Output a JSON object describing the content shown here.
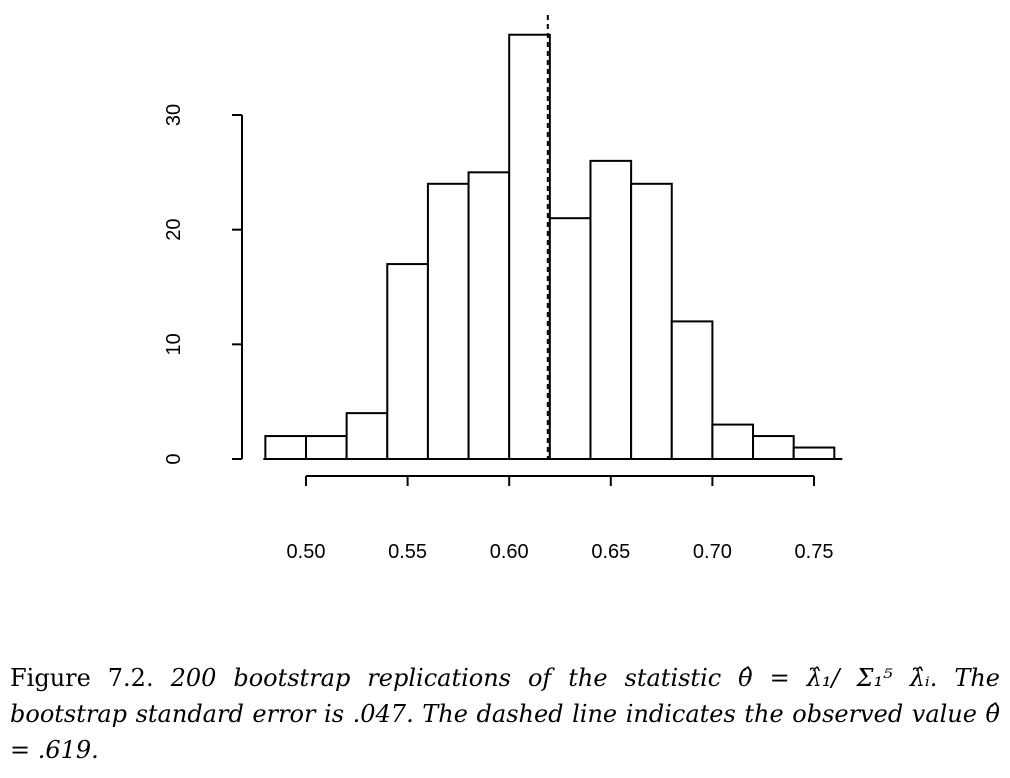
{
  "chart_data": {
    "type": "bar",
    "subtype": "histogram",
    "bins": [
      [
        0.48,
        0.5
      ],
      [
        0.5,
        0.52
      ],
      [
        0.52,
        0.54
      ],
      [
        0.54,
        0.56
      ],
      [
        0.56,
        0.58
      ],
      [
        0.58,
        0.6
      ],
      [
        0.6,
        0.62
      ],
      [
        0.62,
        0.64
      ],
      [
        0.64,
        0.66
      ],
      [
        0.66,
        0.68
      ],
      [
        0.68,
        0.7
      ],
      [
        0.7,
        0.72
      ],
      [
        0.72,
        0.74
      ],
      [
        0.74,
        0.76
      ]
    ],
    "values": [
      2,
      2,
      4,
      17,
      24,
      25,
      37,
      21,
      26,
      24,
      12,
      3,
      2,
      1
    ],
    "xlim": [
      0.48,
      0.76
    ],
    "ylim": [
      0,
      30
    ],
    "xticks": [
      "0.50",
      "0.55",
      "0.60",
      "0.65",
      "0.70",
      "0.75"
    ],
    "yticks": [
      "0",
      "10",
      "20",
      "30"
    ],
    "reference_line": 0.619,
    "reference_style": "dashed",
    "title": "",
    "xlabel": "",
    "ylabel": "",
    "grid": false,
    "bar_fill": "#ffffff",
    "bar_stroke": "#000000"
  },
  "caption": {
    "label": "Figure 7.2.",
    "text": "200 bootstrap replications of the statistic θ̂ = λ̂₁/ Σ₁⁵ λ̂ᵢ. The bootstrap standard error is .047. The dashed line indicates the observed value θ̂ = .619."
  }
}
